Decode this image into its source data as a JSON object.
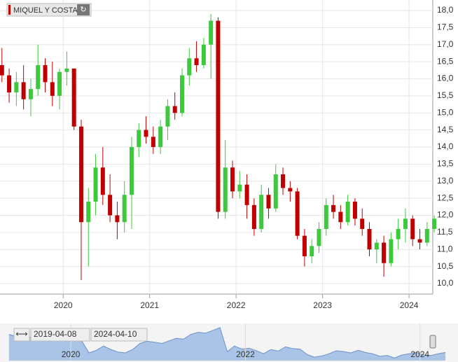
{
  "chart_data": {
    "type": "candlestick",
    "title": "MIQUEL Y COSTA",
    "x": [
      "2019-04",
      "2019-05",
      "2019-06",
      "2019-07",
      "2019-08",
      "2019-09",
      "2019-10",
      "2019-11",
      "2019-12",
      "2020-01",
      "2020-02",
      "2020-03",
      "2020-04",
      "2020-05",
      "2020-06",
      "2020-07",
      "2020-08",
      "2020-09",
      "2020-10",
      "2020-11",
      "2020-12",
      "2021-01",
      "2021-02",
      "2021-03",
      "2021-04",
      "2021-05",
      "2021-06",
      "2021-07",
      "2021-08",
      "2021-09",
      "2021-10",
      "2021-11",
      "2021-12",
      "2022-01",
      "2022-02",
      "2022-03",
      "2022-04",
      "2022-05",
      "2022-06",
      "2022-07",
      "2022-08",
      "2022-09",
      "2022-10",
      "2022-11",
      "2022-12",
      "2023-01",
      "2023-02",
      "2023-03",
      "2023-04",
      "2023-05",
      "2023-06",
      "2023-07",
      "2023-08",
      "2023-09",
      "2023-10",
      "2023-11",
      "2023-12",
      "2024-01",
      "2024-02",
      "2024-03",
      "2024-04"
    ],
    "open": [
      16.4,
      16.1,
      15.6,
      15.9,
      15.4,
      15.7,
      16.4,
      15.9,
      15.5,
      16.2,
      16.3,
      14.6,
      11.8,
      12.4,
      13.4,
      12.6,
      12.0,
      11.8,
      12.6,
      14.0,
      14.5,
      14.3,
      14.0,
      14.6,
      15.2,
      15.0,
      16.1,
      16.6,
      16.4,
      17.0,
      17.7,
      12.1,
      13.4,
      12.7,
      12.9,
      12.3,
      11.6,
      12.6,
      12.2,
      13.2,
      12.8,
      12.7,
      11.4,
      10.8,
      11.1,
      11.6,
      12.3,
      12.1,
      11.8,
      12.4,
      11.9,
      11.6,
      11.0,
      11.2,
      10.6,
      11.3,
      11.6,
      11.9,
      11.3,
      11.2,
      11.6
    ],
    "high": [
      16.9,
      16.3,
      16.2,
      16.4,
      16.0,
      17.0,
      16.6,
      16.5,
      16.3,
      16.8,
      16.3,
      14.8,
      12.8,
      13.8,
      14.0,
      13.2,
      12.4,
      13.0,
      14.3,
      14.7,
      14.9,
      14.6,
      14.8,
      15.4,
      15.6,
      16.3,
      16.9,
      17.1,
      17.2,
      17.9,
      17.8,
      14.2,
      13.6,
      13.3,
      13.2,
      12.5,
      12.9,
      12.8,
      13.5,
      13.4,
      13.0,
      12.8,
      11.6,
      11.3,
      11.8,
      12.5,
      12.6,
      12.3,
      12.6,
      12.5,
      12.2,
      11.8,
      11.3,
      11.4,
      11.5,
      11.9,
      12.2,
      12.0,
      11.6,
      11.8,
      12.0
    ],
    "low": [
      15.9,
      15.3,
      15.2,
      15.1,
      14.9,
      15.5,
      15.6,
      15.2,
      15.1,
      15.8,
      14.5,
      10.1,
      10.5,
      12.0,
      12.3,
      11.8,
      11.3,
      11.5,
      11.6,
      13.7,
      14.1,
      13.8,
      13.8,
      14.2,
      14.8,
      14.9,
      15.8,
      16.2,
      16.3,
      16.0,
      11.9,
      11.9,
      12.5,
      12.5,
      11.9,
      11.4,
      11.5,
      11.9,
      12.1,
      12.6,
      12.4,
      11.3,
      10.5,
      10.6,
      10.9,
      11.4,
      11.9,
      11.6,
      11.7,
      11.7,
      11.4,
      10.8,
      10.6,
      10.2,
      10.5,
      11.0,
      11.2,
      11.1,
      11.0,
      11.1,
      11.5
    ],
    "close": [
      16.1,
      15.6,
      15.9,
      15.4,
      15.7,
      16.4,
      15.9,
      15.5,
      16.2,
      16.3,
      14.6,
      11.8,
      12.4,
      13.4,
      12.6,
      12.0,
      11.8,
      12.6,
      14.0,
      14.5,
      14.3,
      14.0,
      14.6,
      15.2,
      15.0,
      16.1,
      16.6,
      16.4,
      17.0,
      17.7,
      12.1,
      13.4,
      12.7,
      12.9,
      12.3,
      11.6,
      12.6,
      12.2,
      13.2,
      12.8,
      12.7,
      11.4,
      10.8,
      11.1,
      11.6,
      12.3,
      12.1,
      11.8,
      12.4,
      11.9,
      11.6,
      11.0,
      11.2,
      10.6,
      11.3,
      11.6,
      11.9,
      11.3,
      11.2,
      11.6,
      11.9
    ],
    "up_color": "#3ec83e",
    "down_color": "#c00000",
    "ylim": [
      10.0,
      18.0
    ],
    "yticks": [
      {
        "value": 10.0,
        "label": "10,0"
      },
      {
        "value": 10.5,
        "label": "10,5"
      },
      {
        "value": 11.0,
        "label": "11,0"
      },
      {
        "value": 11.5,
        "label": "11,5"
      },
      {
        "value": 12.0,
        "label": "12,0"
      },
      {
        "value": 12.5,
        "label": "12,5"
      },
      {
        "value": 13.0,
        "label": "13,0"
      },
      {
        "value": 13.5,
        "label": "13,5"
      },
      {
        "value": 14.0,
        "label": "14,0"
      },
      {
        "value": 14.5,
        "label": "14,5"
      },
      {
        "value": 15.0,
        "label": "15,0"
      },
      {
        "value": 15.5,
        "label": "15,5"
      },
      {
        "value": 16.0,
        "label": "16,0"
      },
      {
        "value": 16.5,
        "label": "16,5"
      },
      {
        "value": 17.0,
        "label": "17,0"
      },
      {
        "value": 17.5,
        "label": "17,5"
      },
      {
        "value": 18.0,
        "label": "18,0"
      }
    ],
    "xlim": [
      "2019-04-08",
      "2024-04-10"
    ],
    "xticks": [
      {
        "value": "2020-01-01",
        "label": "2020"
      },
      {
        "value": "2021-01-01",
        "label": "2021"
      },
      {
        "value": "2022-01-01",
        "label": "2022"
      },
      {
        "value": "2023-01-01",
        "label": "2023"
      },
      {
        "value": "2024-01-01",
        "label": "2024"
      }
    ],
    "navigator_ticks": [
      {
        "value": "2020-01-01",
        "label": "2020"
      },
      {
        "value": "2022-01-01",
        "label": "2022"
      },
      {
        "value": "2024-01-01",
        "label": "2024"
      }
    ],
    "grid": true
  }
}
